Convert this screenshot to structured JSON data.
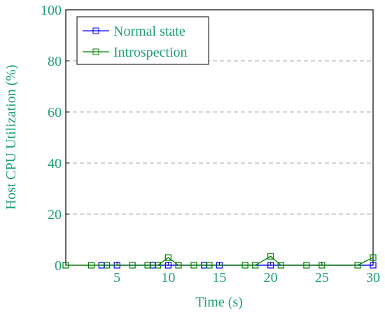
{
  "chart_data": {
    "type": "line",
    "xlabel": "Time (s)",
    "ylabel": "Host CPU Utilization (%)",
    "xlim": [
      0,
      30
    ],
    "xticks": [
      5,
      10,
      15,
      20,
      25,
      30
    ],
    "ylim": [
      0,
      100
    ],
    "yticks": [
      0,
      20,
      40,
      60,
      80,
      100
    ],
    "grid": true,
    "legend": "upper left",
    "series": [
      {
        "name": "Normal state",
        "color": "#0000ff",
        "x": [
          3.5,
          5,
          8.5,
          10,
          13.5,
          15,
          20,
          30
        ],
        "values": [
          0,
          0,
          0,
          0,
          0,
          0,
          0,
          0
        ]
      },
      {
        "name": "Introspection",
        "color": "#008000",
        "x": [
          0,
          2.5,
          4,
          6.5,
          8,
          9,
          10,
          11,
          12.5,
          14,
          17.5,
          18.5,
          20,
          21,
          23.5,
          25,
          28.5,
          30
        ],
        "values": [
          0,
          0,
          0,
          0,
          0,
          0,
          3,
          0,
          0,
          0,
          0,
          0,
          3.5,
          0,
          0,
          0,
          0,
          3
        ]
      }
    ]
  }
}
